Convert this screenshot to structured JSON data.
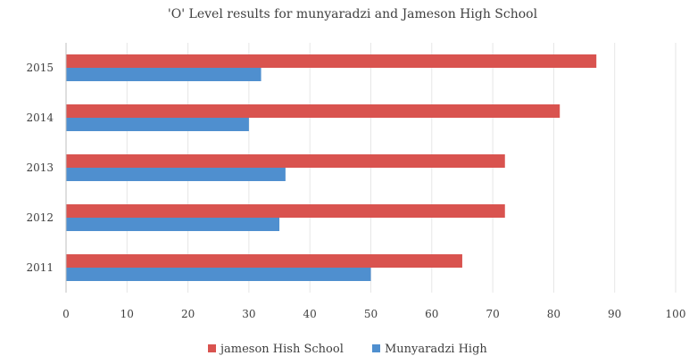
{
  "chart_data": {
    "type": "bar",
    "orientation": "horizontal",
    "title": "'O' Level results for munyaradzi and Jameson High School",
    "xlabel": "",
    "ylabel": "",
    "categories": [
      "2011",
      "2012",
      "2013",
      "2014",
      "2015"
    ],
    "series": [
      {
        "name": "jameson Hish School",
        "color": "#d9534f",
        "values": [
          65,
          72,
          72,
          81,
          87
        ]
      },
      {
        "name": "Munyaradzi High",
        "color": "#4f8fcf",
        "values": [
          50,
          35,
          36,
          30,
          32
        ]
      }
    ],
    "xlim": [
      0,
      100
    ],
    "xticks": [
      0,
      10,
      20,
      30,
      40,
      50,
      60,
      70,
      80,
      90,
      100
    ],
    "grid": true,
    "legend_position": "bottom"
  }
}
